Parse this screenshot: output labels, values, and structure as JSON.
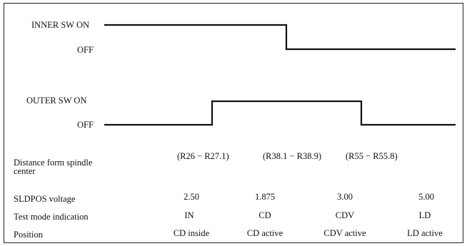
{
  "inner_switch": {
    "on_label": "INNER SW ON",
    "off_label": "OFF"
  },
  "outer_switch": {
    "on_label": "OUTER SW ON",
    "off_label": "OFF"
  },
  "distance": {
    "label_line1": "Distance form spindle",
    "label_line2": "center",
    "ranges": [
      "(R26 − R27.1)",
      "(R38.1 − R38.9)",
      "(R55 − R55.8)"
    ]
  },
  "table": {
    "rows": [
      {
        "label": "SLDPOS voltage",
        "values": [
          "2.50",
          "1.875",
          "3.00",
          "5.00"
        ]
      },
      {
        "label": "Test mode indication",
        "values": [
          "IN",
          "CD",
          "CDV",
          "LD"
        ]
      },
      {
        "label": "Position",
        "values": [
          "CD inside",
          "CD active",
          "CDV active",
          "LD active"
        ]
      }
    ]
  }
}
